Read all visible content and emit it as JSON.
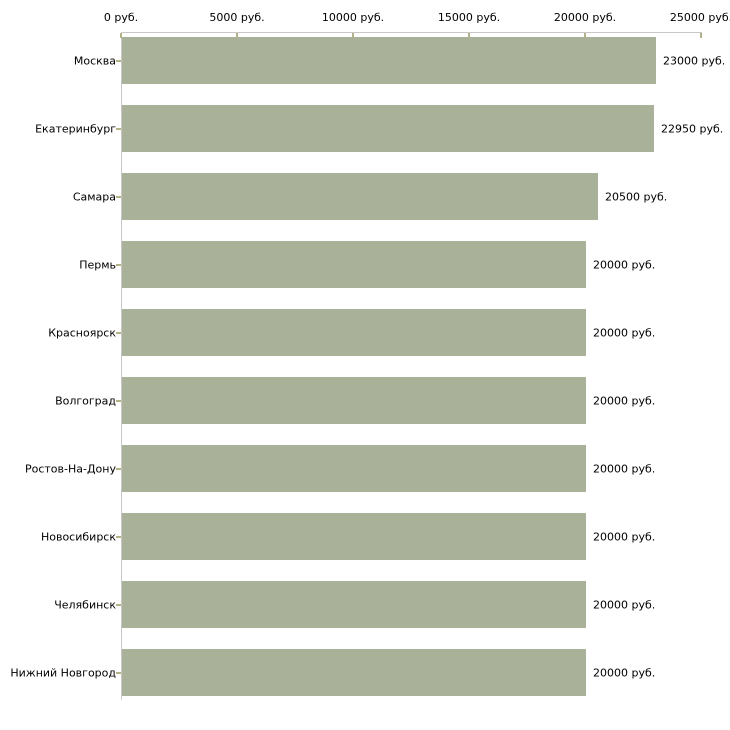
{
  "chart_data": {
    "type": "bar",
    "orientation": "horizontal",
    "title": "",
    "legend": "none",
    "grid": "off",
    "categories": [
      "Москва",
      "Екатеринбург",
      "Самара",
      "Пермь",
      "Красноярск",
      "Волгоград",
      "Ростов-На-Дону",
      "Новосибирск",
      "Челябинск",
      "Нижний Новгород"
    ],
    "values": [
      23000,
      22950,
      20500,
      20000,
      20000,
      20000,
      20000,
      20000,
      20000,
      20000
    ],
    "value_labels": [
      "23000 руб.",
      "22950 руб.",
      "20500 руб.",
      "20000 руб.",
      "20000 руб.",
      "20000 руб.",
      "20000 руб.",
      "20000 руб.",
      "20000 руб.",
      "20000 руб."
    ],
    "x_axis": {
      "position": "top",
      "min": 0,
      "max": 25000,
      "ticks": [
        0,
        5000,
        10000,
        15000,
        20000,
        25000
      ],
      "tick_labels": [
        "0 руб.",
        "5000 руб.",
        "10000 руб.",
        "15000 руб.",
        "20000 руб.",
        "25000 руб."
      ]
    },
    "colors": {
      "bar": "#aab199",
      "axis_line": "#c8c8c8",
      "tick": "#b3b387",
      "text": "#000000",
      "background": "#ffffff"
    }
  }
}
